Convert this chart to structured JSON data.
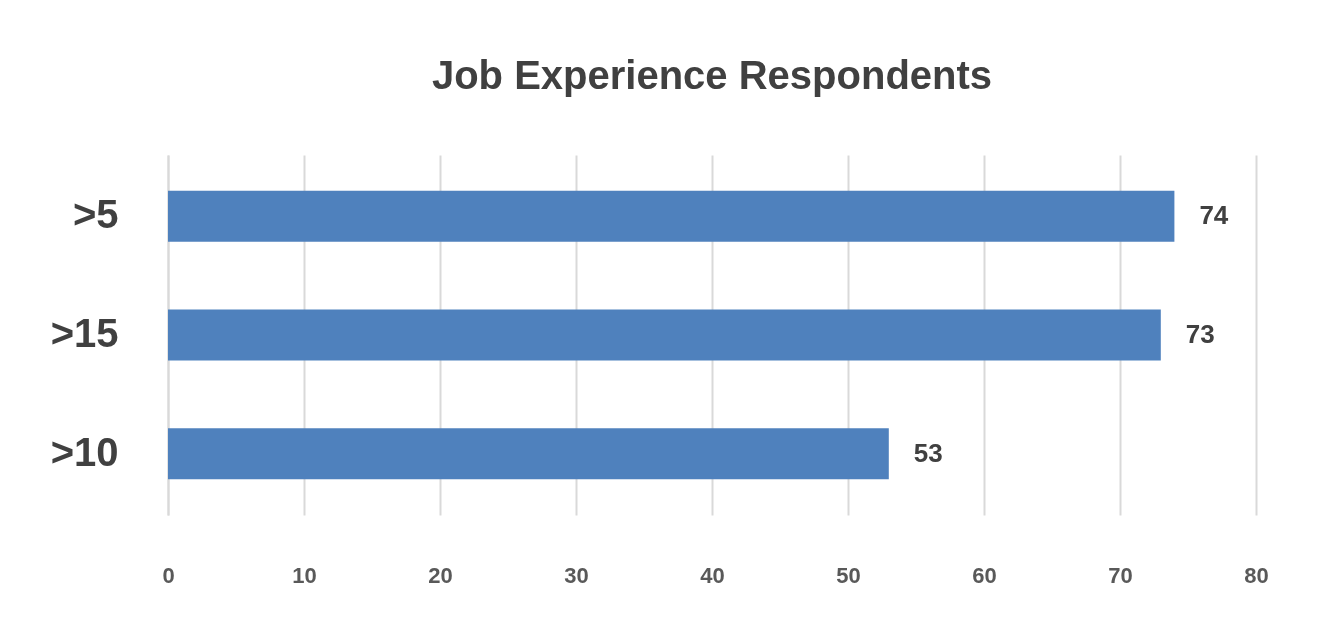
{
  "chart_data": {
    "type": "bar",
    "orientation": "horizontal",
    "title": "Job Experience Respondents",
    "categories": [
      ">5",
      ">15",
      ">10"
    ],
    "values": [
      74,
      73,
      53
    ],
    "color": "#4f81bd",
    "xlim": [
      0,
      80
    ],
    "xticks": [
      0,
      10,
      20,
      30,
      40,
      50,
      60,
      70,
      80
    ],
    "grid": "x",
    "data_labels": true
  }
}
